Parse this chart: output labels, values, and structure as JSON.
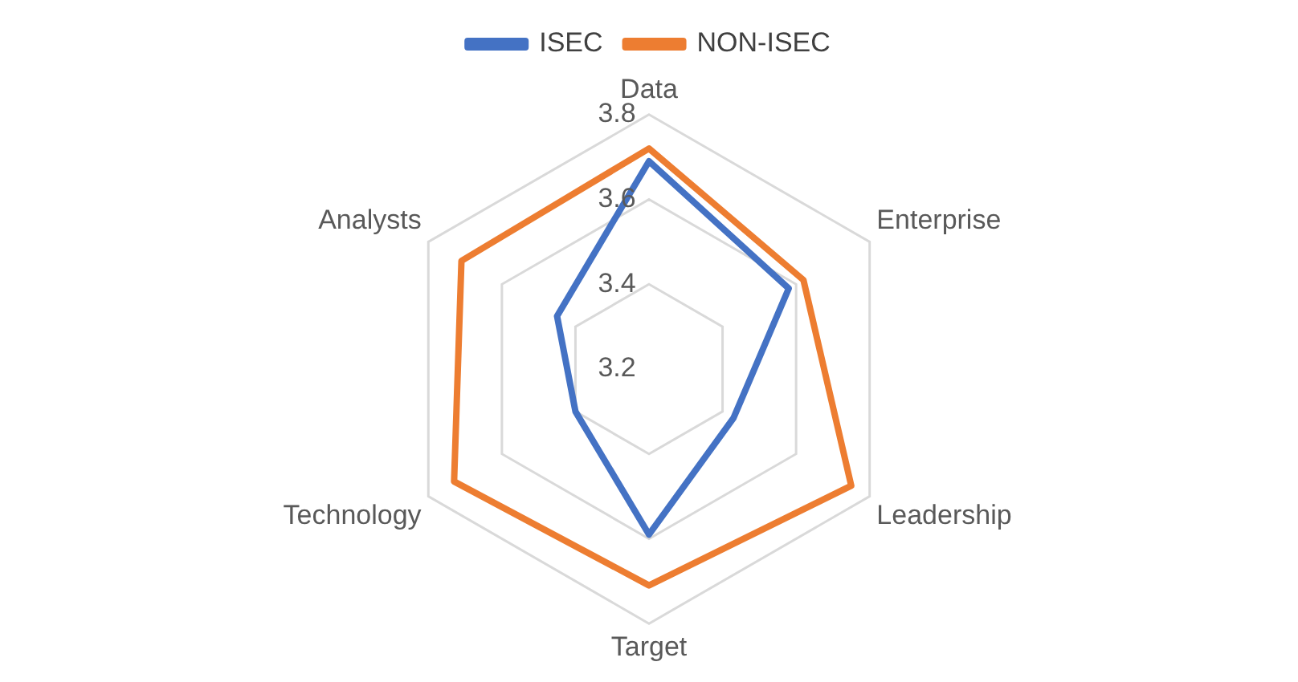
{
  "chart_data": {
    "type": "radar",
    "categories": [
      "Data",
      "Enterprise",
      "Leadership",
      "Target",
      "Technology",
      "Analysts"
    ],
    "series": [
      {
        "name": "ISEC",
        "color": "#4472c4",
        "values": [
          3.69,
          3.58,
          3.43,
          3.59,
          3.4,
          3.45
        ]
      },
      {
        "name": "NON-ISEC",
        "color": "#ed7d31",
        "values": [
          3.72,
          3.62,
          3.75,
          3.71,
          3.73,
          3.71
        ]
      }
    ],
    "ylim": [
      3.2,
      3.8
    ],
    "yticks": [
      3.2,
      3.4,
      3.6,
      3.8
    ],
    "grid": true,
    "legend": "top",
    "marker": "none"
  }
}
